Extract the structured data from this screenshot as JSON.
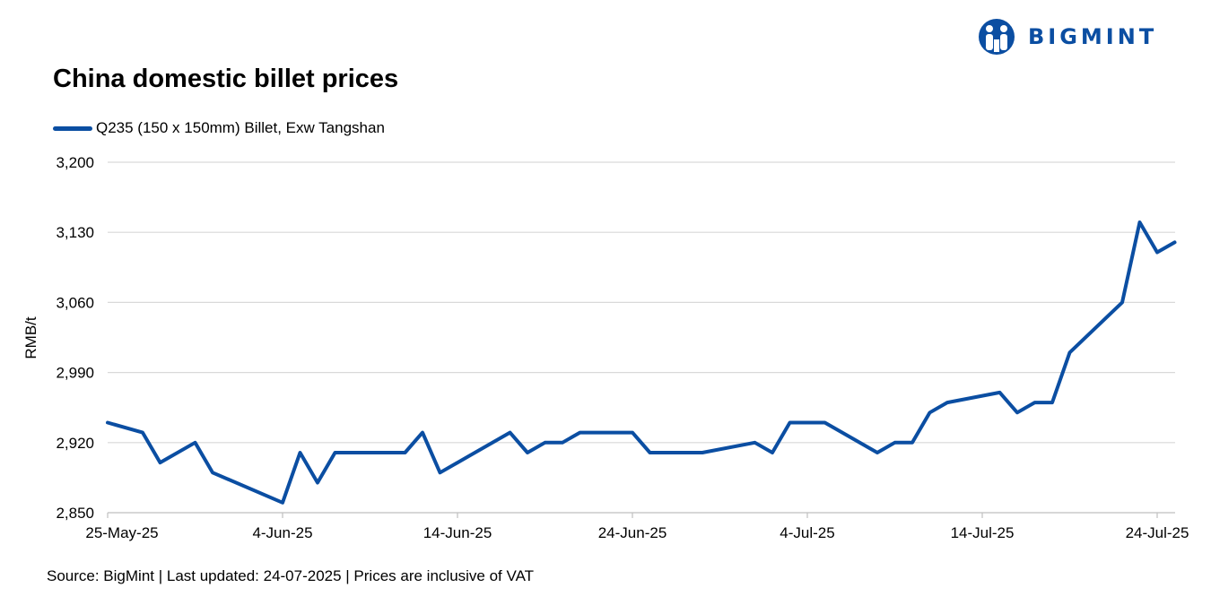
{
  "brand": {
    "name": "BIGMINT",
    "color": "#0b4ea2",
    "icon": "bigmint-logo-icon"
  },
  "source_note": "Source: BigMint | Last updated: 24-07-2025 | Prices are inclusive of VAT",
  "chart_data": {
    "type": "line",
    "title": "China domestic billet prices",
    "ylabel": "RMB/t",
    "xlabel": "",
    "ylim": [
      2850,
      3200
    ],
    "yticks": [
      2850,
      2920,
      2990,
      3060,
      3130,
      3200
    ],
    "ytick_labels": [
      "2,850",
      "2,920",
      "2,990",
      "3,060",
      "3,130",
      "3,200"
    ],
    "xlim": [
      "2025-05-25",
      "2025-07-24"
    ],
    "xticks": [
      "2025-05-25",
      "2025-06-04",
      "2025-06-14",
      "2025-06-24",
      "2025-07-04",
      "2025-07-14",
      "2025-07-24"
    ],
    "xtick_labels": [
      "25-May-25",
      "4-Jun-25",
      "14-Jun-25",
      "24-Jun-25",
      "4-Jul-25",
      "14-Jul-25",
      "24-Jul-25"
    ],
    "grid": true,
    "legend_position": "top-left",
    "series": [
      {
        "name": "Q235 (150 x 150mm) Billet, Exw Tangshan",
        "color": "#0b4ea2",
        "points": [
          [
            "2025-05-25",
            2940
          ],
          [
            "2025-05-27",
            2930
          ],
          [
            "2025-05-28",
            2900
          ],
          [
            "2025-05-30",
            2920
          ],
          [
            "2025-05-31",
            2890
          ],
          [
            "2025-06-04",
            2860
          ],
          [
            "2025-06-05",
            2910
          ],
          [
            "2025-06-06",
            2880
          ],
          [
            "2025-06-07",
            2910
          ],
          [
            "2025-06-11",
            2910
          ],
          [
            "2025-06-12",
            2930
          ],
          [
            "2025-06-13",
            2890
          ],
          [
            "2025-06-17",
            2930
          ],
          [
            "2025-06-18",
            2910
          ],
          [
            "2025-06-19",
            2920
          ],
          [
            "2025-06-20",
            2920
          ],
          [
            "2025-06-21",
            2930
          ],
          [
            "2025-06-24",
            2930
          ],
          [
            "2025-06-25",
            2910
          ],
          [
            "2025-06-28",
            2910
          ],
          [
            "2025-07-01",
            2920
          ],
          [
            "2025-07-02",
            2910
          ],
          [
            "2025-07-03",
            2940
          ],
          [
            "2025-07-05",
            2940
          ],
          [
            "2025-07-08",
            2910
          ],
          [
            "2025-07-09",
            2920
          ],
          [
            "2025-07-10",
            2920
          ],
          [
            "2025-07-11",
            2950
          ],
          [
            "2025-07-12",
            2960
          ],
          [
            "2025-07-15",
            2970
          ],
          [
            "2025-07-16",
            2950
          ],
          [
            "2025-07-17",
            2960
          ],
          [
            "2025-07-18",
            2960
          ],
          [
            "2025-07-19",
            3010
          ],
          [
            "2025-07-22",
            3060
          ],
          [
            "2025-07-23",
            3140
          ],
          [
            "2025-07-24",
            3110
          ],
          [
            "2025-07-25",
            3120
          ]
        ]
      }
    ]
  }
}
